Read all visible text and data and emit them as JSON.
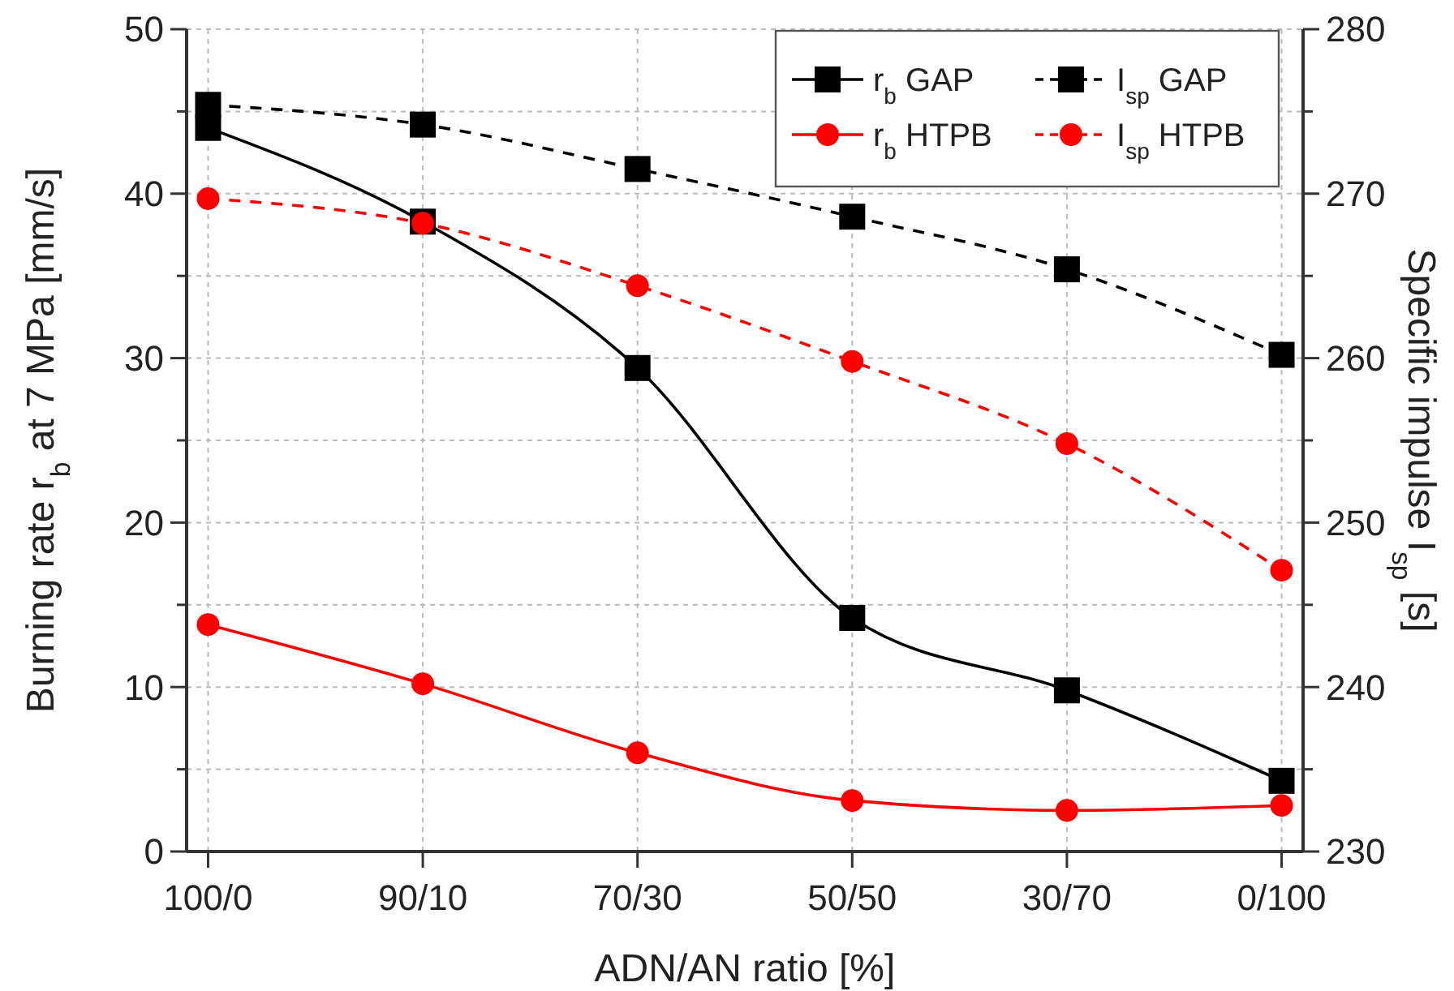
{
  "chart_data": {
    "type": "line",
    "xlabel": "ADN/AN ratio [%]",
    "ylabel": "Burning rate r$_{b}$ at 7 MPa [mm/s]",
    "y2label": "Specific impulse I$_{sp}$ [s]",
    "categories": [
      "100/0",
      "90/10",
      "70/30",
      "50/50",
      "30/70",
      "0/100"
    ],
    "series": [
      {
        "name": "r$_{b}$ GAP",
        "color": "#000000",
        "values": [
          44.0,
          38.3,
          29.4,
          14.2,
          9.8,
          4.3
        ],
        "marker": "square",
        "line_style": "solid"
      },
      {
        "name": "r$_{b}$ HTPB",
        "color": "#ff0000",
        "values": [
          13.8,
          10.2,
          6.0,
          3.1,
          2.5,
          2.8
        ],
        "marker": "circle",
        "line_style": "solid"
      },
      {
        "name": "I$_{sp}$ GAP",
        "color": "#000000",
        "values": [
          275.4,
          274.2,
          271.5,
          268.6,
          265.4,
          260.2
        ],
        "marker": "square",
        "line_style": "dashed",
        "axis": "y2"
      },
      {
        "name": "I$_{sp}$ HTPB",
        "color": "#ff0000",
        "values": [
          269.7,
          268.2,
          264.4,
          259.8,
          254.8,
          247.1
        ],
        "marker": "circle",
        "line_style": "dashed",
        "axis": "y2"
      }
    ],
    "ylim": [
      0,
      50
    ],
    "yticks": [
      0,
      {
        "value": 5,
        "label": null
      },
      10,
      {
        "value": 15,
        "label": null
      },
      20,
      {
        "value": 25,
        "label": null
      },
      30,
      {
        "value": 35,
        "label": null
      },
      40,
      {
        "value": 45,
        "label": null
      },
      50
    ],
    "y2lim": [
      230,
      280
    ],
    "y2ticks": [
      230,
      {
        "value": 235,
        "label": null
      },
      240,
      {
        "value": 245,
        "label": null
      },
      250,
      {
        "value": 255,
        "label": null
      },
      260,
      {
        "value": 265,
        "label": null
      },
      270,
      {
        "value": 275,
        "label": null
      },
      280
    ],
    "grid": true,
    "legend": "top right"
  }
}
